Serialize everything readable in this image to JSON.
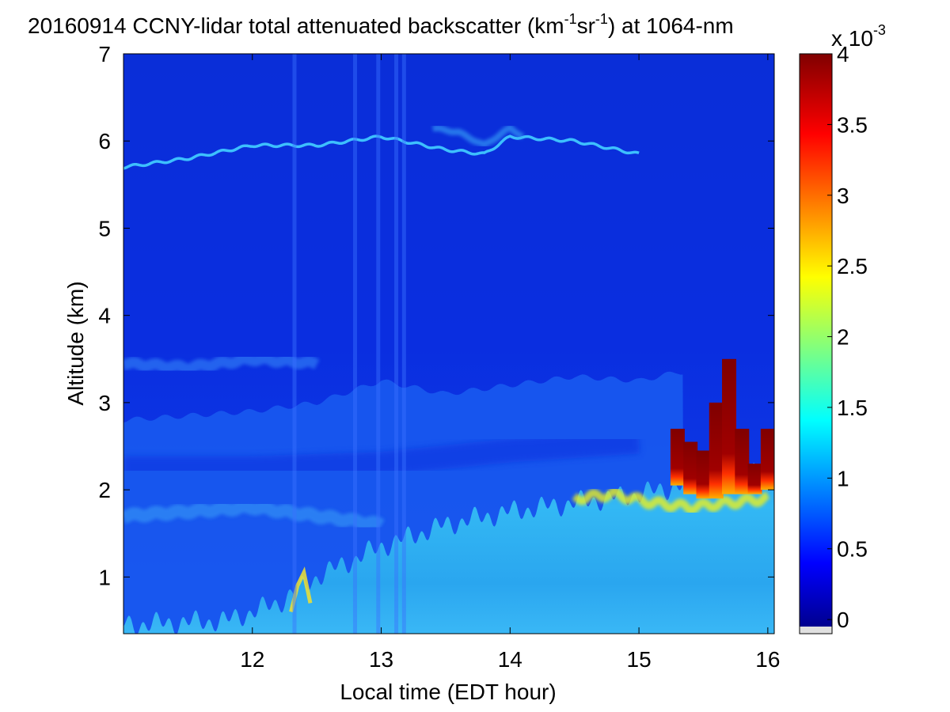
{
  "chart_data": {
    "type": "heatmap",
    "title": {
      "date": "20160914",
      "text_a": "CCNY-lidar total attenuated backscatter (km",
      "sup_a": "-1",
      "text_b": "sr",
      "sup_b": "-1",
      "text_c": ") at 1064-nm"
    },
    "xlabel": "Local time (EDT hour)",
    "ylabel": "Altitude (km)",
    "xlim": [
      11.0,
      16.05
    ],
    "ylim": [
      0.35,
      7.0
    ],
    "xticks": [
      12,
      13,
      14,
      15,
      16
    ],
    "yticks": [
      1,
      2,
      3,
      4,
      5,
      6,
      7
    ],
    "colorbar": {
      "range": [
        -0.1,
        4.0
      ],
      "ticks": [
        0,
        0.5,
        1,
        1.5,
        2,
        2.5,
        3,
        3.5,
        4
      ],
      "tick_labels": [
        "0",
        "0.5",
        "1",
        "1.5",
        "2",
        "2.5",
        "3",
        "3.5",
        "4"
      ],
      "multiplier_base": "x 10",
      "multiplier_exp": "-3",
      "colormap": "jet",
      "below_range_color": "#e0e0e0"
    },
    "features": {
      "aerosol_layer_top_km": {
        "x": [
          11.0,
          12.0,
          12.5,
          13.0,
          13.5,
          14.0,
          14.5,
          15.0,
          15.3
        ],
        "y": [
          2.8,
          2.9,
          3.0,
          3.25,
          3.1,
          3.2,
          3.3,
          3.25,
          3.35
        ]
      },
      "elevated_layer_km": {
        "x": [
          11.0,
          11.5,
          12.0,
          12.5
        ],
        "y": [
          3.45,
          3.4,
          3.5,
          3.45
        ]
      },
      "thin_cirrus_km": {
        "x": [
          11.0,
          11.5,
          12.0,
          12.5,
          13.0,
          13.5,
          13.8,
          14.0,
          14.5,
          15.0
        ],
        "y": [
          5.7,
          5.8,
          5.95,
          5.95,
          6.05,
          5.9,
          5.85,
          6.05,
          6.0,
          5.85
        ]
      },
      "boundary_layer_top_km": {
        "x": [
          11.0,
          11.8,
          12.2,
          12.5,
          13.0,
          13.5,
          14.0,
          14.5,
          15.0,
          15.5,
          16.0
        ],
        "y": [
          0.45,
          0.5,
          0.7,
          1.0,
          1.35,
          1.6,
          1.75,
          1.85,
          1.95,
          2.1,
          2.2
        ]
      },
      "cloud_cells": [
        {
          "t": 15.3,
          "top": 2.7,
          "bottom": 2.05
        },
        {
          "t": 15.4,
          "top": 2.55,
          "bottom": 1.95
        },
        {
          "t": 15.5,
          "top": 2.45,
          "bottom": 1.9
        },
        {
          "t": 15.6,
          "top": 3.0,
          "bottom": 1.9
        },
        {
          "t": 15.7,
          "top": 3.5,
          "bottom": 1.95
        },
        {
          "t": 15.8,
          "top": 2.7,
          "bottom": 1.95
        },
        {
          "t": 15.9,
          "top": 2.3,
          "bottom": 1.95
        },
        {
          "t": 16.0,
          "top": 2.7,
          "bottom": 2.0
        }
      ]
    }
  }
}
